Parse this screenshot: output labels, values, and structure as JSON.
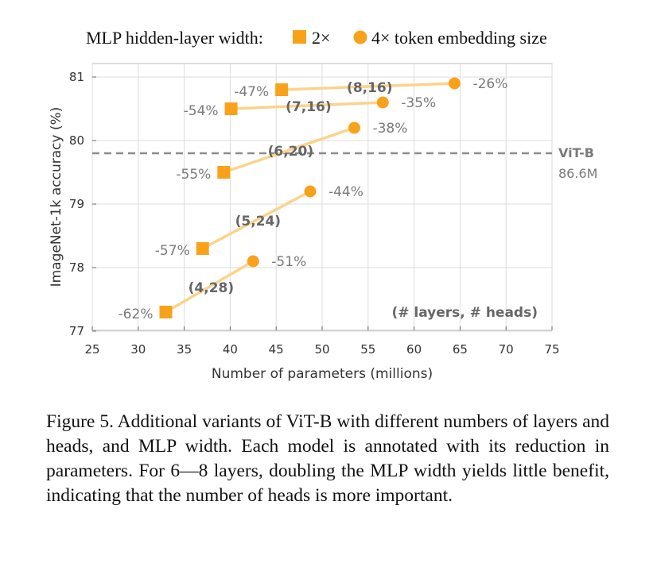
{
  "chart_data": {
    "type": "scatter",
    "legend": {
      "title": "MLP hidden-layer width:",
      "entries": [
        {
          "marker": "square",
          "label": "2×"
        },
        {
          "marker": "circle",
          "label": "4× token embedding size"
        }
      ],
      "placement": "top"
    },
    "xlabel": "Number of parameters (millions)",
    "ylabel": "ImageNet-1k accuracy (%)",
    "xlim": [
      25,
      75
    ],
    "ylim": [
      77,
      81.2
    ],
    "xticks": [
      "25",
      "30",
      "35",
      "40",
      "45",
      "50",
      "55",
      "60",
      "65",
      "70",
      "75"
    ],
    "yticks": [
      "77",
      "78",
      "79",
      "80",
      "81"
    ],
    "grid": true,
    "groups": [
      {
        "config": "(4,28)",
        "points": [
          {
            "marker": "square",
            "x": 33.0,
            "y": 77.3,
            "reduction": "-62%"
          },
          {
            "marker": "circle",
            "x": 42.5,
            "y": 78.1,
            "reduction": "-51%"
          }
        ]
      },
      {
        "config": "(5,24)",
        "points": [
          {
            "marker": "square",
            "x": 37.0,
            "y": 78.3,
            "reduction": "-57%"
          },
          {
            "marker": "circle",
            "x": 48.7,
            "y": 79.2,
            "reduction": "-44%"
          }
        ]
      },
      {
        "config": "(6,20)",
        "points": [
          {
            "marker": "square",
            "x": 39.3,
            "y": 79.5,
            "reduction": "-55%"
          },
          {
            "marker": "circle",
            "x": 53.5,
            "y": 80.2,
            "reduction": "-38%"
          }
        ]
      },
      {
        "config": "(7,16)",
        "points": [
          {
            "marker": "square",
            "x": 40.1,
            "y": 80.5,
            "reduction": "-54%"
          },
          {
            "marker": "circle",
            "x": 56.6,
            "y": 80.6,
            "reduction": "-35%"
          }
        ]
      },
      {
        "config": "(8,16)",
        "points": [
          {
            "marker": "square",
            "x": 45.6,
            "y": 80.8,
            "reduction": "-47%"
          },
          {
            "marker": "circle",
            "x": 64.4,
            "y": 80.9,
            "reduction": "-26%"
          }
        ]
      }
    ],
    "reference": {
      "name": "ViT-B",
      "size": "86.6M",
      "y": 79.8
    },
    "annotation": "(# layers, # heads)",
    "colors": {
      "marker": "#f8a21b",
      "line": "#fbd38a",
      "reference": "#8c8c8c",
      "grid": "#dddddd"
    }
  },
  "caption": "Figure 5. Additional variants of ViT-B with different numbers of layers and heads, and MLP width. Each model is annotated with its reduction in parameters. For 6—8 layers, doubling the MLP width yields little benefit, indicating that the number of heads is more important."
}
